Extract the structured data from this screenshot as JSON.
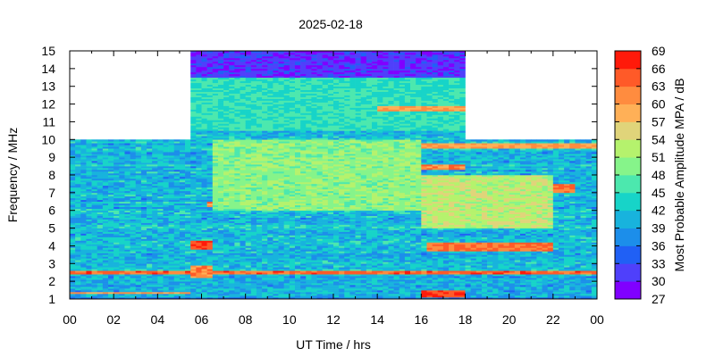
{
  "chart_data": {
    "type": "heatmap",
    "title": "2025-02-18",
    "xlabel": "UT Time / hrs",
    "ylabel": "Frequency / MHz",
    "colorbar_label": "Most Probable Amplitude MPA / dB",
    "xlim": [
      0,
      24
    ],
    "ylim": [
      1,
      15
    ],
    "x_ticks": [
      "00",
      "02",
      "04",
      "06",
      "08",
      "10",
      "12",
      "14",
      "16",
      "18",
      "20",
      "22",
      "00"
    ],
    "y_ticks": [
      "1",
      "2",
      "3",
      "4",
      "5",
      "6",
      "7",
      "8",
      "9",
      "10",
      "11",
      "12",
      "13",
      "14",
      "15"
    ],
    "colorbar_ticks": [
      "27",
      "30",
      "33",
      "36",
      "39",
      "42",
      "45",
      "48",
      "51",
      "54",
      "57",
      "60",
      "63",
      "66",
      "69"
    ],
    "color_scale": [
      "#8000ff",
      "#4f40fb",
      "#2060f5",
      "#1c8eea",
      "#18b3dd",
      "#17d4c8",
      "#4ce8ae",
      "#86f48a",
      "#b5f26d",
      "#e0d47a",
      "#ffb057",
      "#ff8c3f",
      "#ff5a28",
      "#ff1a0a"
    ],
    "value_range_db": [
      27,
      69
    ],
    "coverage": [
      {
        "start_hr": 0.0,
        "end_hr": 5.5,
        "max_mhz": 10
      },
      {
        "start_hr": 5.5,
        "end_hr": 18.0,
        "max_mhz": 15
      },
      {
        "start_hr": 18.0,
        "end_hr": 24.0,
        "max_mhz": 10
      }
    ],
    "background_mpa_db": 41,
    "features": [
      {
        "t0": 0,
        "t1": 24,
        "f0": 2.45,
        "f1": 2.62,
        "mpa_db": 64
      },
      {
        "t0": 0,
        "t1": 5.5,
        "f0": 1.3,
        "f1": 1.42,
        "mpa_db": 60
      },
      {
        "t0": 0,
        "t1": 24,
        "f0": 1.0,
        "f1": 1.1,
        "mpa_db": 36
      },
      {
        "t0": 5.5,
        "t1": 6.4,
        "f0": 3.8,
        "f1": 4.3,
        "mpa_db": 66
      },
      {
        "t0": 5.5,
        "t1": 6.5,
        "f0": 2.2,
        "f1": 2.9,
        "mpa_db": 62
      },
      {
        "t0": 16.2,
        "t1": 22.0,
        "f0": 3.7,
        "f1": 4.2,
        "mpa_db": 63
      },
      {
        "t0": 16.0,
        "t1": 18.0,
        "f0": 1.1,
        "f1": 1.5,
        "mpa_db": 66
      },
      {
        "t0": 16.0,
        "t1": 23.0,
        "f0": 7.0,
        "f1": 7.5,
        "mpa_db": 63
      },
      {
        "t0": 6.5,
        "t1": 18.0,
        "f0": 8.3,
        "f1": 8.6,
        "mpa_db": 62
      },
      {
        "t0": 6.2,
        "t1": 18.0,
        "f0": 6.2,
        "f1": 6.5,
        "mpa_db": 62
      },
      {
        "t0": 14.5,
        "t1": 24.0,
        "f0": 9.5,
        "f1": 9.8,
        "mpa_db": 60
      },
      {
        "t0": 5.5,
        "t1": 18.0,
        "f0": 13.5,
        "f1": 15.0,
        "mpa_db": 31
      },
      {
        "t0": 5.5,
        "t1": 18.0,
        "f0": 10.5,
        "f1": 13.5,
        "mpa_db": 45
      },
      {
        "t0": 14.0,
        "t1": 18.0,
        "f0": 11.6,
        "f1": 11.9,
        "mpa_db": 60
      },
      {
        "t0": 6.5,
        "t1": 16.0,
        "f0": 6.0,
        "f1": 10.0,
        "mpa_db": 50
      },
      {
        "t0": 16.0,
        "t1": 22.0,
        "f0": 5.0,
        "f1": 8.0,
        "mpa_db": 53
      }
    ]
  }
}
